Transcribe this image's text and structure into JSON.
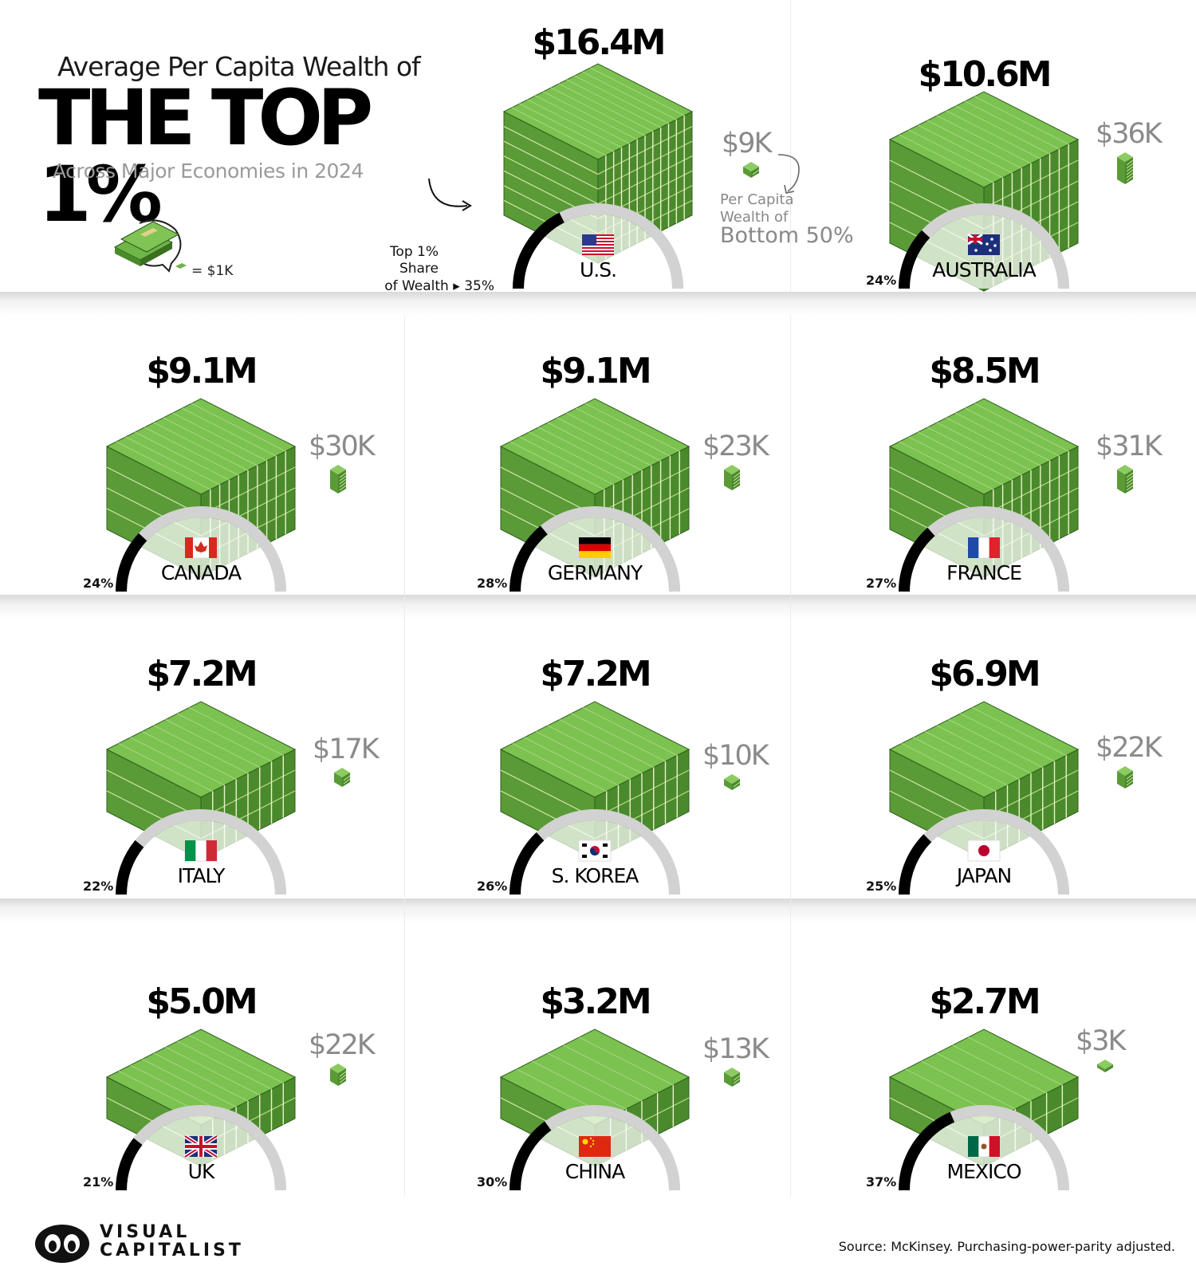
{
  "title": {
    "line1": "Average Per Capita Wealth of",
    "line2": "THE TOP 1%",
    "line3": "Across Major Economies in 2024"
  },
  "legend": {
    "unit_label": "= $1K"
  },
  "annotation": {
    "share_label_line1": "Top 1% Share",
    "share_label_line2": "of Wealth",
    "bottom_label_line1": "Per Capita",
    "bottom_label_line2": "Wealth of",
    "bottom_label_line3": "Bottom 50%"
  },
  "footer": {
    "brand_line1": "VISUAL",
    "brand_line2": "CAPITALIST",
    "source": "Source: McKinsey. Purchasing-power-parity adjusted."
  },
  "colors": {
    "money_green": "#6fb548",
    "arc_dark": "#000000",
    "arc_light": "#d2d2d2",
    "grey_text": "#8a8a8a"
  },
  "chart_data": {
    "type": "bar",
    "title": "Average Per Capita Wealth of THE TOP 1%",
    "subtitle": "Across Major Economies in 2024",
    "categories": [
      "U.S.",
      "AUSTRALIA",
      "CANADA",
      "GERMANY",
      "FRANCE",
      "ITALY",
      "S. KOREA",
      "JAPAN",
      "UK",
      "CHINA",
      "MEXICO"
    ],
    "series": [
      {
        "name": "Average Per Capita Wealth of THE TOP 1%",
        "values": [
          16.4,
          10.6,
          9.1,
          9.1,
          8.5,
          7.2,
          7.2,
          6.9,
          5.0,
          3.2,
          2.7
        ],
        "labels": [
          "$16.4M",
          "$10.6M",
          "$9.1M",
          "$9.1M",
          "$8.5M",
          "$7.2M",
          "$7.2M",
          "$6.9M",
          "$5.0M",
          "$3.2M",
          "$2.7M"
        ]
      },
      {
        "name": "Per Capita Wealth of Bottom 50%",
        "values": [
          9,
          36,
          30,
          23,
          31,
          17,
          10,
          22,
          22,
          13,
          3
        ],
        "labels": [
          "$9K",
          "$36K",
          "$30K",
          "$23K",
          "$31K",
          "$17K",
          "$10K",
          "$22K",
          "$22K",
          "$13K",
          "$3K"
        ]
      },
      {
        "name": "Top 1% Share of Wealth",
        "values": [
          35,
          24,
          24,
          28,
          27,
          22,
          26,
          25,
          21,
          30,
          37
        ],
        "labels": [
          "35%",
          "24%",
          "24%",
          "28%",
          "27%",
          "22%",
          "26%",
          "25%",
          "21%",
          "30%",
          "37%"
        ]
      }
    ],
    "countries": [
      {
        "name": "U.S.",
        "flag": "flag-us",
        "top1": "$16.4M",
        "bottom50": "$9K",
        "share": "35%",
        "share_value": 35,
        "top1_value": 16.4,
        "bottom_value": 9
      },
      {
        "name": "AUSTRALIA",
        "flag": "flag-au",
        "top1": "$10.6M",
        "bottom50": "$36K",
        "share": "24%",
        "share_value": 24,
        "top1_value": 10.6,
        "bottom_value": 36
      },
      {
        "name": "CANADA",
        "flag": "flag-ca",
        "top1": "$9.1M",
        "bottom50": "$30K",
        "share": "24%",
        "share_value": 24,
        "top1_value": 9.1,
        "bottom_value": 30
      },
      {
        "name": "GERMANY",
        "flag": "flag-de",
        "top1": "$9.1M",
        "bottom50": "$23K",
        "share": "28%",
        "share_value": 28,
        "top1_value": 9.1,
        "bottom_value": 23
      },
      {
        "name": "FRANCE",
        "flag": "flag-fr",
        "top1": "$8.5M",
        "bottom50": "$31K",
        "share": "27%",
        "share_value": 27,
        "top1_value": 8.5,
        "bottom_value": 31
      },
      {
        "name": "ITALY",
        "flag": "flag-it",
        "top1": "$7.2M",
        "bottom50": "$17K",
        "share": "22%",
        "share_value": 22,
        "top1_value": 7.2,
        "bottom_value": 17
      },
      {
        "name": "S. KOREA",
        "flag": "flag-kr",
        "top1": "$7.2M",
        "bottom50": "$10K",
        "share": "26%",
        "share_value": 26,
        "top1_value": 7.2,
        "bottom_value": 10
      },
      {
        "name": "JAPAN",
        "flag": "flag-jp",
        "top1": "$6.9M",
        "bottom50": "$22K",
        "share": "25%",
        "share_value": 25,
        "top1_value": 6.9,
        "bottom_value": 22
      },
      {
        "name": "UK",
        "flag": "flag-uk",
        "top1": "$5.0M",
        "bottom50": "$22K",
        "share": "21%",
        "share_value": 21,
        "top1_value": 5.0,
        "bottom_value": 22
      },
      {
        "name": "CHINA",
        "flag": "flag-cn",
        "top1": "$3.2M",
        "bottom50": "$13K",
        "share": "30%",
        "share_value": 30,
        "top1_value": 3.2,
        "bottom_value": 13
      },
      {
        "name": "MEXICO",
        "flag": "flag-mx",
        "top1": "$2.7M",
        "bottom50": "$3K",
        "share": "37%",
        "share_value": 37,
        "top1_value": 2.7,
        "bottom_value": 3
      }
    ]
  }
}
